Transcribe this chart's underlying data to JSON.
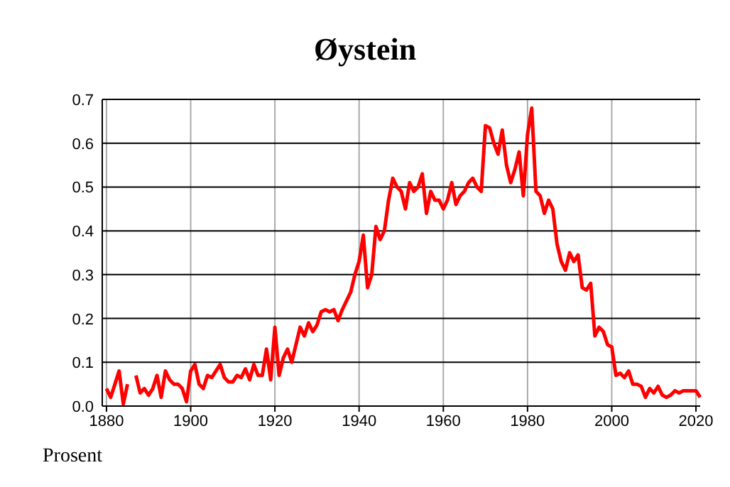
{
  "chart_data": {
    "type": "line",
    "title": "Øystein",
    "ylabel": "Prosent",
    "x": [
      1880,
      1881,
      1882,
      1883,
      1884,
      1885,
      1886,
      1887,
      1888,
      1889,
      1890,
      1891,
      1892,
      1893,
      1894,
      1895,
      1896,
      1897,
      1898,
      1899,
      1900,
      1901,
      1902,
      1903,
      1904,
      1905,
      1906,
      1907,
      1908,
      1909,
      1910,
      1911,
      1912,
      1913,
      1914,
      1915,
      1916,
      1917,
      1918,
      1919,
      1920,
      1921,
      1922,
      1923,
      1924,
      1925,
      1926,
      1927,
      1928,
      1929,
      1930,
      1931,
      1932,
      1933,
      1934,
      1935,
      1936,
      1937,
      1938,
      1939,
      1940,
      1941,
      1942,
      1943,
      1944,
      1945,
      1946,
      1947,
      1948,
      1949,
      1950,
      1951,
      1952,
      1953,
      1954,
      1955,
      1956,
      1957,
      1958,
      1959,
      1960,
      1961,
      1962,
      1963,
      1964,
      1965,
      1966,
      1967,
      1968,
      1969,
      1970,
      1971,
      1972,
      1973,
      1974,
      1975,
      1976,
      1977,
      1978,
      1979,
      1980,
      1981,
      1982,
      1983,
      1984,
      1985,
      1986,
      1987,
      1988,
      1989,
      1990,
      1991,
      1992,
      1993,
      1994,
      1995,
      1996,
      1997,
      1998,
      1999,
      2000,
      2001,
      2002,
      2003,
      2004,
      2005,
      2006,
      2007,
      2008,
      2009,
      2010,
      2011,
      2012,
      2013,
      2014,
      2015,
      2016,
      2017,
      2018,
      2019,
      2020,
      2021
    ],
    "series": [
      {
        "color": "#ff0000",
        "values": [
          0.04,
          0.02,
          0.05,
          0.08,
          0.005,
          0.05,
          null,
          0.07,
          0.03,
          0.04,
          0.025,
          0.04,
          0.07,
          0.02,
          0.08,
          0.06,
          0.05,
          0.05,
          0.04,
          0.01,
          0.08,
          0.095,
          0.05,
          0.04,
          0.07,
          0.065,
          0.08,
          0.095,
          0.065,
          0.055,
          0.055,
          0.07,
          0.065,
          0.085,
          0.06,
          0.095,
          0.07,
          0.07,
          0.13,
          0.06,
          0.18,
          0.07,
          0.11,
          0.13,
          0.1,
          0.14,
          0.18,
          0.16,
          0.19,
          0.17,
          0.185,
          0.215,
          0.22,
          0.215,
          0.22,
          0.195,
          0.22,
          0.24,
          0.26,
          0.3,
          0.33,
          0.39,
          0.27,
          0.3,
          0.41,
          0.38,
          0.4,
          0.47,
          0.52,
          0.5,
          0.49,
          0.45,
          0.51,
          0.49,
          0.5,
          0.53,
          0.44,
          0.49,
          0.47,
          0.47,
          0.45,
          0.47,
          0.51,
          0.46,
          0.48,
          0.49,
          0.51,
          0.52,
          0.5,
          0.49,
          0.64,
          0.635,
          0.6,
          0.575,
          0.63,
          0.55,
          0.51,
          0.54,
          0.58,
          0.48,
          0.62,
          0.68,
          0.49,
          0.48,
          0.44,
          0.47,
          0.45,
          0.37,
          0.33,
          0.31,
          0.35,
          0.33,
          0.345,
          0.27,
          0.265,
          0.28,
          0.16,
          0.18,
          0.17,
          0.14,
          0.135,
          0.07,
          0.075,
          0.065,
          0.08,
          0.05,
          0.05,
          0.045,
          0.02,
          0.04,
          0.03,
          0.045,
          0.025,
          0.02,
          0.025,
          0.035,
          0.03,
          0.035,
          0.035,
          0.035,
          0.035,
          0.02
        ]
      }
    ],
    "xlim": [
      1879,
      2021
    ],
    "xticks": [
      1880,
      1900,
      1920,
      1940,
      1960,
      1980,
      2000,
      2020
    ],
    "ylim": [
      0,
      0.7
    ],
    "yticks": [
      {
        "value": 0,
        "label": "0.0"
      },
      0.1,
      0.2,
      0.3,
      0.4,
      0.5,
      0.6,
      0.7
    ],
    "grid": true,
    "line_style": "solid"
  }
}
